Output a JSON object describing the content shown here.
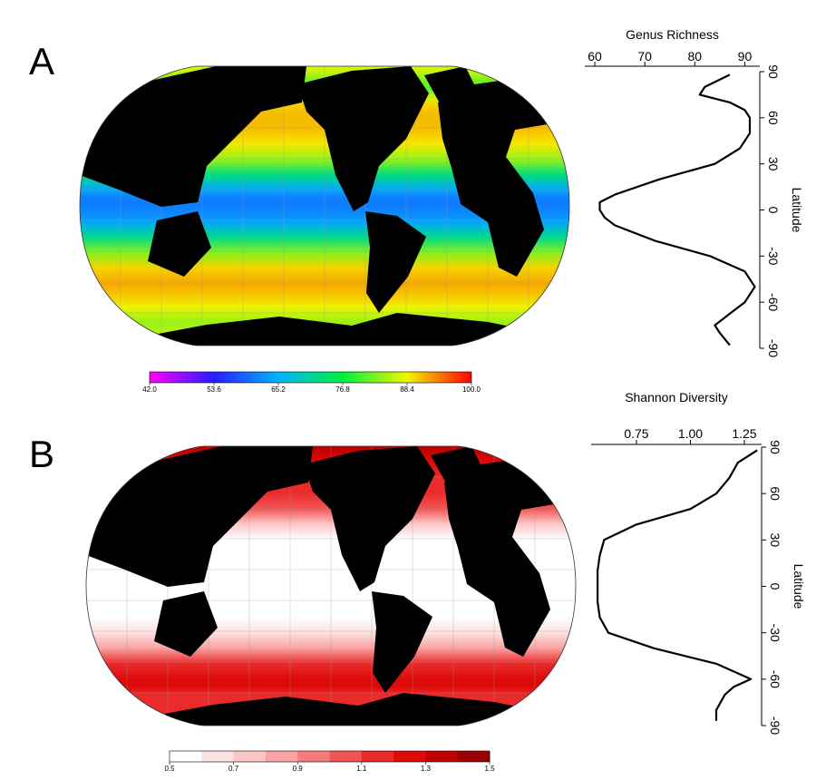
{
  "chart_data": [
    {
      "type": "line",
      "panel_label": "A",
      "xlabel": "Genus Richness",
      "ylabel": "Latitude",
      "color": "#000000",
      "latitude": [
        88,
        80,
        75,
        70,
        65,
        60,
        50,
        45,
        40,
        30,
        20,
        10,
        5,
        0,
        -5,
        -10,
        -20,
        -30,
        -40,
        -50,
        -60,
        -65,
        -70,
        -75,
        -80,
        -88
      ],
      "values": [
        87,
        82,
        81,
        87,
        90,
        91,
        91,
        90,
        89,
        84,
        73,
        64,
        61,
        61,
        62,
        64,
        72,
        83,
        90,
        92,
        90,
        88,
        86,
        84,
        85,
        87
      ],
      "xlim": [
        58,
        93
      ],
      "xticks": [
        60,
        70,
        80,
        90
      ],
      "ylim": [
        -90,
        90
      ],
      "yticks": [
        90,
        60,
        30,
        0,
        -30,
        -60,
        -90
      ],
      "colorbar": {
        "lim": [
          42,
          100
        ],
        "discrete": false,
        "ticks": [
          {
            "value": 42,
            "label": "42.0"
          },
          53.6,
          65.2,
          76.8,
          88.4,
          {
            "value": 100,
            "label": "100.0"
          }
        ],
        "colors": [
          "#ff00ff",
          "#2a1cff",
          "#00b4ff",
          "#00f040",
          "#f4f400",
          "#ff0000"
        ]
      }
    },
    {
      "type": "line",
      "panel_label": "B",
      "xlabel": "Shannon Diversity",
      "ylabel": "Latitude",
      "color": "#000000",
      "latitude": [
        88,
        80,
        70,
        60,
        50,
        40,
        30,
        20,
        10,
        0,
        -10,
        -20,
        -30,
        -40,
        -50,
        -60,
        -65,
        -70,
        -80,
        -87
      ],
      "values": [
        1.31,
        1.22,
        1.18,
        1.12,
        1.0,
        0.75,
        0.6,
        0.58,
        0.57,
        0.57,
        0.57,
        0.58,
        0.62,
        0.83,
        1.12,
        1.28,
        1.2,
        1.16,
        1.12,
        1.12
      ],
      "xlim": [
        0.54,
        1.33
      ],
      "xticks": [
        {
          "value": 0.75,
          "label": "0.75"
        },
        {
          "value": 1,
          "label": "1.00"
        },
        {
          "value": 1.25,
          "label": "1.25"
        }
      ],
      "ylim": [
        -90,
        90
      ],
      "yticks": [
        90,
        60,
        30,
        0,
        -30,
        -60,
        -90
      ],
      "colorbar": {
        "lim": [
          0.5,
          1.5
        ],
        "discrete": true,
        "ticks": [
          0.5,
          0.7,
          0.9,
          1.1,
          1.3,
          1.5
        ],
        "colors": [
          "#ffffff",
          "#fde2e2",
          "#fcc6c6",
          "#f9a3a3",
          "#f67c7c",
          "#f25353",
          "#ea2b2b",
          "#dd0a0a",
          "#c00000",
          "#9c0000"
        ]
      }
    }
  ]
}
